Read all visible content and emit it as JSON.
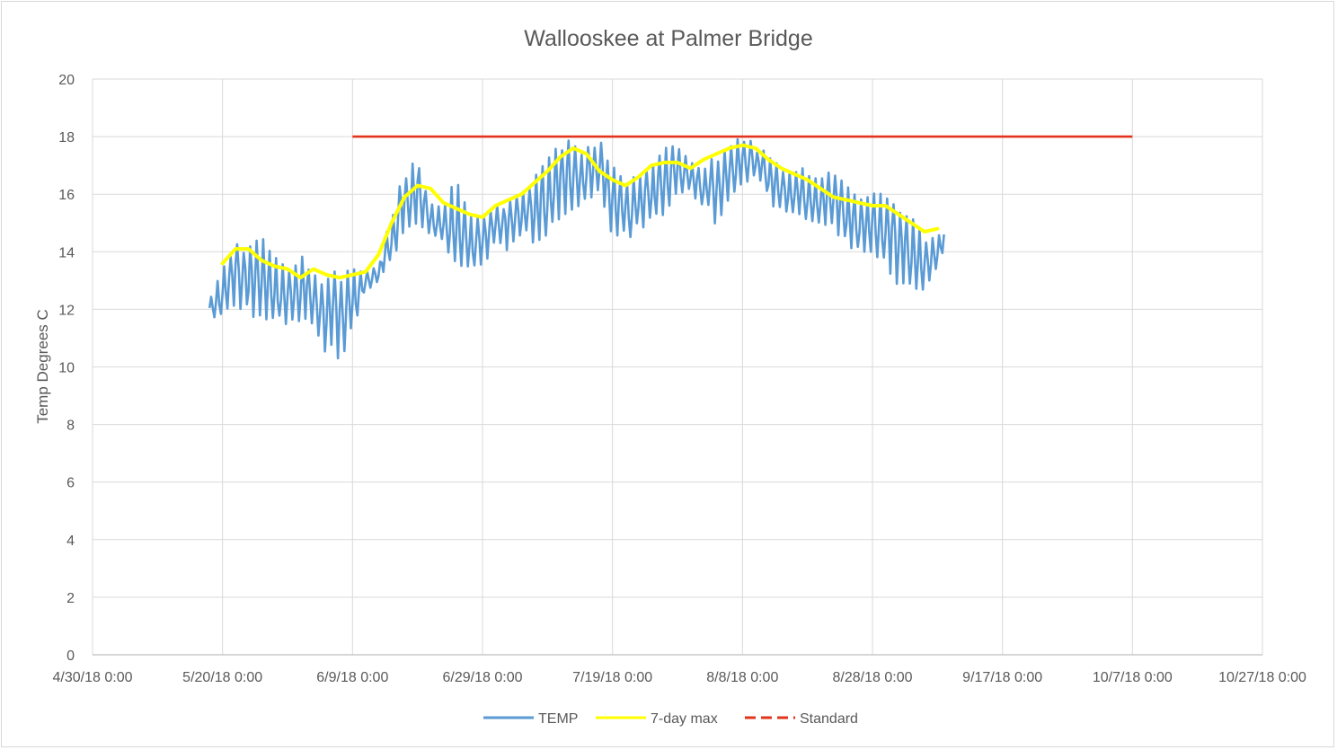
{
  "chart_data": {
    "type": "line",
    "title": "Wallooskee at Palmer Bridge",
    "xlabel": "",
    "ylabel": "Temp Degrees C",
    "x_axis_type": "date",
    "xlim": [
      "2018-04-30",
      "2018-10-27"
    ],
    "ylim": [
      0,
      20
    ],
    "x_tick_labels": [
      "4/30/18 0:00",
      "5/20/18 0:00",
      "6/9/18 0:00",
      "6/29/18 0:00",
      "7/19/18 0:00",
      "8/8/18 0:00",
      "8/28/18 0:00",
      "9/17/18 0:00",
      "10/7/18 0:00",
      "10/27/18 0:00"
    ],
    "x_tick_dates": [
      "2018-04-30",
      "2018-05-20",
      "2018-06-09",
      "2018-06-29",
      "2018-07-19",
      "2018-08-08",
      "2018-08-28",
      "2018-09-17",
      "2018-10-07",
      "2018-10-27"
    ],
    "y_ticks": [
      0,
      2,
      4,
      6,
      8,
      10,
      12,
      14,
      16,
      18,
      20
    ],
    "grid": "both",
    "legend_position": "bottom",
    "series": [
      {
        "name": "TEMP",
        "color": "#5b9bd5",
        "style": "solid",
        "envelope": {
          "note": "daily min/max of fluctuating readings",
          "dates": [
            "2018-05-18",
            "2018-05-20",
            "2018-05-22",
            "2018-05-24",
            "2018-05-26",
            "2018-05-28",
            "2018-05-30",
            "2018-06-01",
            "2018-06-03",
            "2018-06-05",
            "2018-06-07",
            "2018-06-09",
            "2018-06-11",
            "2018-06-13",
            "2018-06-15",
            "2018-06-17",
            "2018-06-19",
            "2018-06-21",
            "2018-06-23",
            "2018-06-25",
            "2018-06-27",
            "2018-06-29",
            "2018-07-01",
            "2018-07-03",
            "2018-07-05",
            "2018-07-07",
            "2018-07-09",
            "2018-07-11",
            "2018-07-13",
            "2018-07-15",
            "2018-07-17",
            "2018-07-19",
            "2018-07-21",
            "2018-07-23",
            "2018-07-25",
            "2018-07-27",
            "2018-07-29",
            "2018-07-31",
            "2018-08-02",
            "2018-08-04",
            "2018-08-06",
            "2018-08-08",
            "2018-08-10",
            "2018-08-12",
            "2018-08-14",
            "2018-08-16",
            "2018-08-18",
            "2018-08-20",
            "2018-08-22",
            "2018-08-24",
            "2018-08-26",
            "2018-08-28",
            "2018-08-30",
            "2018-09-01",
            "2018-09-03",
            "2018-09-05",
            "2018-09-07",
            "2018-09-08"
          ],
          "max": [
            12.3,
            13.4,
            14.6,
            14.2,
            14.5,
            14.0,
            13.3,
            14.0,
            13.2,
            13.0,
            13.5,
            13.4,
            13.3,
            13.5,
            15.4,
            16.8,
            17.4,
            15.7,
            15.5,
            16.7,
            15.3,
            15.1,
            15.6,
            15.8,
            16.1,
            16.6,
            17.2,
            17.8,
            17.9,
            17.6,
            17.9,
            17.0,
            16.4,
            16.7,
            16.9,
            17.6,
            17.7,
            17.1,
            16.9,
            17.4,
            17.6,
            18.1,
            17.7,
            17.4,
            17.0,
            16.9,
            16.9,
            16.5,
            16.9,
            16.3,
            15.8,
            16.2,
            15.9,
            15.5,
            15.2,
            14.6,
            14.4,
            15.1
          ],
          "min": [
            11.8,
            11.6,
            12.2,
            11.7,
            11.8,
            11.4,
            11.5,
            11.6,
            11.5,
            10.4,
            10.1,
            11.3,
            12.6,
            13.0,
            13.6,
            14.8,
            15.0,
            14.6,
            14.2,
            13.6,
            13.1,
            13.5,
            14.2,
            14.0,
            14.5,
            14.3,
            14.6,
            15.2,
            15.5,
            15.7,
            16.2,
            14.5,
            14.4,
            14.7,
            15.1,
            15.3,
            16.1,
            16.0,
            15.6,
            14.9,
            15.9,
            16.4,
            16.5,
            15.8,
            15.2,
            15.4,
            15.1,
            15.0,
            14.8,
            14.2,
            14.0,
            14.0,
            13.5,
            12.8,
            12.6,
            12.7,
            13.5,
            14.0
          ]
        }
      },
      {
        "name": "7-day max",
        "color": "#ffff00",
        "style": "solid",
        "x": [
          "2018-05-20",
          "2018-05-22",
          "2018-05-24",
          "2018-05-26",
          "2018-05-28",
          "2018-05-30",
          "2018-06-01",
          "2018-06-03",
          "2018-06-05",
          "2018-06-07",
          "2018-06-09",
          "2018-06-11",
          "2018-06-13",
          "2018-06-15",
          "2018-06-17",
          "2018-06-19",
          "2018-06-21",
          "2018-06-23",
          "2018-06-25",
          "2018-06-27",
          "2018-06-29",
          "2018-07-01",
          "2018-07-03",
          "2018-07-05",
          "2018-07-07",
          "2018-07-09",
          "2018-07-11",
          "2018-07-13",
          "2018-07-15",
          "2018-07-17",
          "2018-07-19",
          "2018-07-21",
          "2018-07-23",
          "2018-07-25",
          "2018-07-27",
          "2018-07-29",
          "2018-07-31",
          "2018-08-02",
          "2018-08-04",
          "2018-08-06",
          "2018-08-08",
          "2018-08-10",
          "2018-08-12",
          "2018-08-14",
          "2018-08-16",
          "2018-08-18",
          "2018-08-20",
          "2018-08-22",
          "2018-08-24",
          "2018-08-26",
          "2018-08-28",
          "2018-08-30",
          "2018-09-01",
          "2018-09-03",
          "2018-09-05",
          "2018-09-07"
        ],
        "values": [
          13.6,
          14.1,
          14.1,
          13.7,
          13.5,
          13.4,
          13.1,
          13.4,
          13.2,
          13.1,
          13.2,
          13.3,
          13.9,
          15.0,
          15.9,
          16.3,
          16.2,
          15.7,
          15.5,
          15.3,
          15.2,
          15.6,
          15.8,
          16.0,
          16.4,
          16.8,
          17.3,
          17.6,
          17.4,
          16.8,
          16.5,
          16.3,
          16.6,
          17.0,
          17.1,
          17.1,
          16.9,
          17.2,
          17.4,
          17.6,
          17.7,
          17.6,
          17.2,
          16.9,
          16.7,
          16.5,
          16.2,
          15.9,
          15.8,
          15.7,
          15.6,
          15.6,
          15.3,
          15.0,
          14.7,
          14.8
        ]
      },
      {
        "name": "Standard",
        "color": "#e2341d",
        "style": "dashed",
        "x": [
          "2018-06-09",
          "2018-10-07"
        ],
        "values": [
          18,
          18
        ]
      }
    ]
  }
}
